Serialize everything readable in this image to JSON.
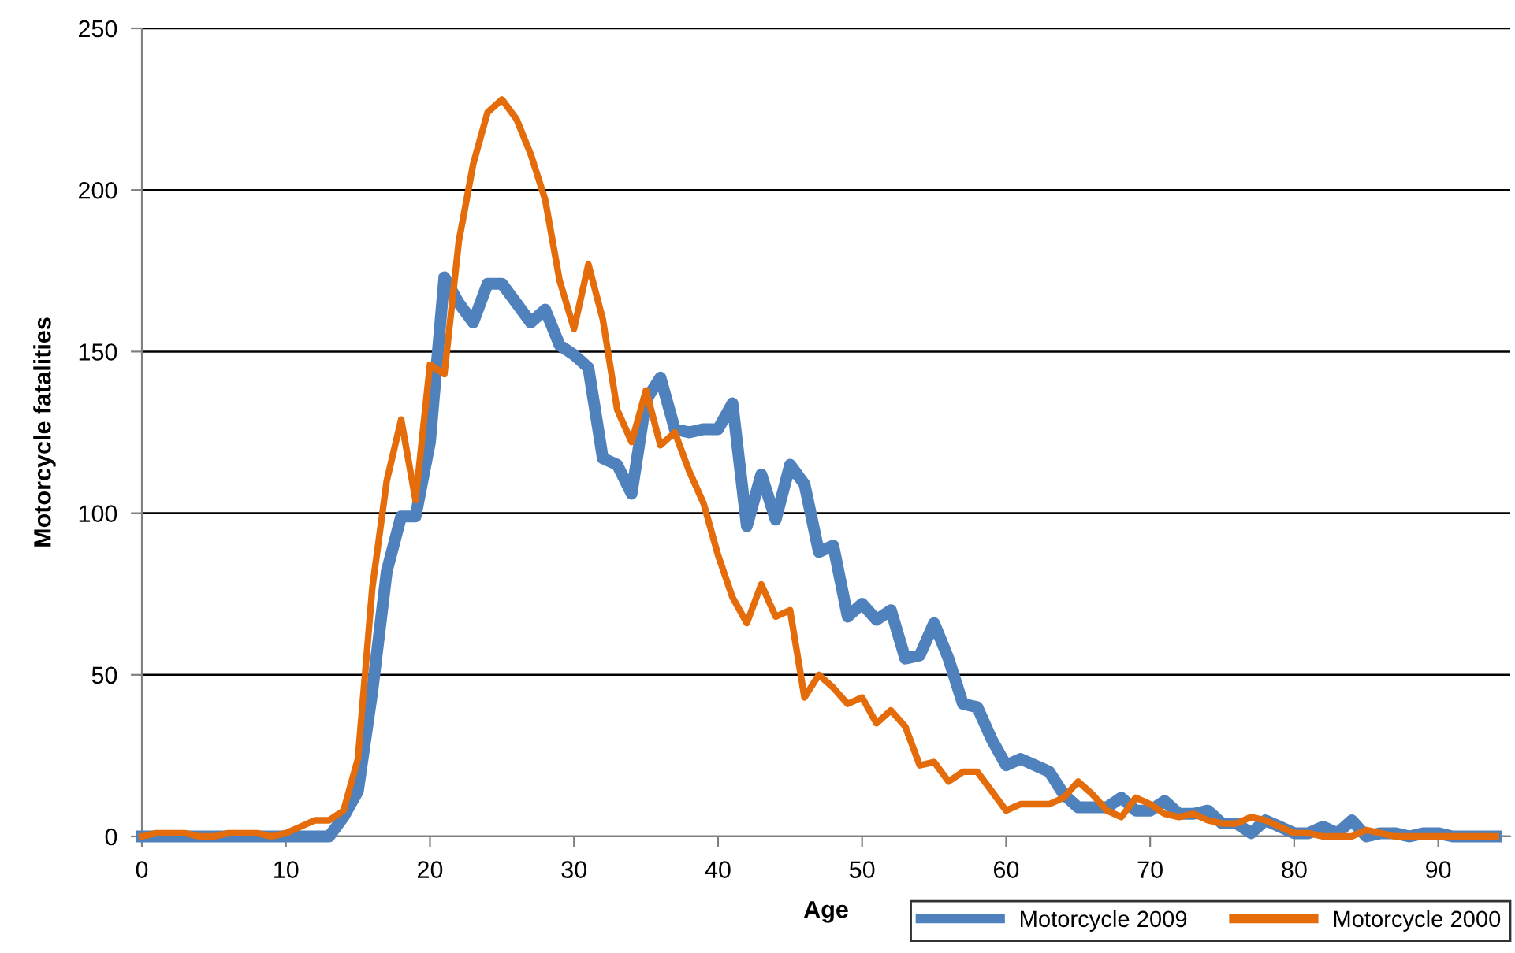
{
  "chart_data": {
    "type": "line",
    "xlabel": "Age",
    "ylabel": "Motorcycle fatalities",
    "x": [
      0,
      1,
      2,
      3,
      4,
      5,
      6,
      7,
      8,
      9,
      10,
      11,
      12,
      13,
      14,
      15,
      16,
      17,
      18,
      19,
      20,
      21,
      22,
      23,
      24,
      25,
      26,
      27,
      28,
      29,
      30,
      31,
      32,
      33,
      34,
      35,
      36,
      37,
      38,
      39,
      40,
      41,
      42,
      43,
      44,
      45,
      46,
      47,
      48,
      49,
      50,
      51,
      52,
      53,
      54,
      55,
      56,
      57,
      58,
      59,
      60,
      61,
      62,
      63,
      64,
      65,
      66,
      67,
      68,
      69,
      70,
      71,
      72,
      73,
      74,
      75,
      76,
      77,
      78,
      79,
      80,
      81,
      82,
      83,
      84,
      85,
      86,
      87,
      88,
      89,
      90,
      91,
      92,
      93,
      94
    ],
    "series": [
      {
        "name": "Motorcycle 2009",
        "color": "#4f81bd",
        "values": [
          0,
          0,
          0,
          0,
          0,
          0,
          0,
          0,
          0,
          0,
          0,
          0,
          0,
          0,
          6,
          14,
          45,
          82,
          99,
          99,
          122,
          173,
          165,
          159,
          171,
          171,
          165,
          159,
          163,
          152,
          149,
          145,
          117,
          115,
          106,
          135,
          142,
          126,
          125,
          126,
          126,
          134,
          96,
          112,
          98,
          115,
          109,
          88,
          90,
          68,
          72,
          67,
          70,
          55,
          56,
          66,
          55,
          41,
          40,
          30,
          22,
          24,
          22,
          20,
          13,
          9,
          9,
          9,
          12,
          8,
          8,
          11,
          7,
          7,
          8,
          4,
          4,
          1,
          5,
          3,
          1,
          1,
          3,
          1,
          5,
          0,
          1,
          1,
          0,
          1,
          1,
          0,
          0,
          0,
          0
        ]
      },
      {
        "name": "Motorcycle 2000",
        "color": "#e46c0a",
        "values": [
          0,
          1,
          1,
          1,
          0,
          0,
          1,
          1,
          1,
          0,
          1,
          3,
          5,
          5,
          8,
          24,
          77,
          110,
          129,
          104,
          146,
          143,
          184,
          208,
          224,
          228,
          222,
          211,
          197,
          172,
          157,
          177,
          160,
          132,
          122,
          138,
          121,
          125,
          113,
          103,
          87,
          74,
          66,
          78,
          68,
          70,
          43,
          50,
          46,
          41,
          43,
          35,
          39,
          34,
          22,
          23,
          17,
          20,
          20,
          14,
          8,
          10,
          10,
          10,
          12,
          17,
          13,
          8,
          6,
          12,
          10,
          7,
          6,
          7,
          5,
          4,
          4,
          6,
          5,
          3,
          1,
          1,
          0,
          0,
          0,
          2,
          1,
          0,
          0,
          0,
          0,
          0,
          0,
          0,
          0
        ]
      }
    ],
    "xlim": [
      0,
      95
    ],
    "xticks": [
      0,
      10,
      20,
      30,
      40,
      50,
      60,
      70,
      80,
      90
    ],
    "ylim": [
      0,
      250
    ],
    "yticks": [
      0,
      50,
      100,
      150,
      200,
      250
    ],
    "grid": "y",
    "legend": "bottom right",
    "marker": "none",
    "line_style": "solid"
  }
}
